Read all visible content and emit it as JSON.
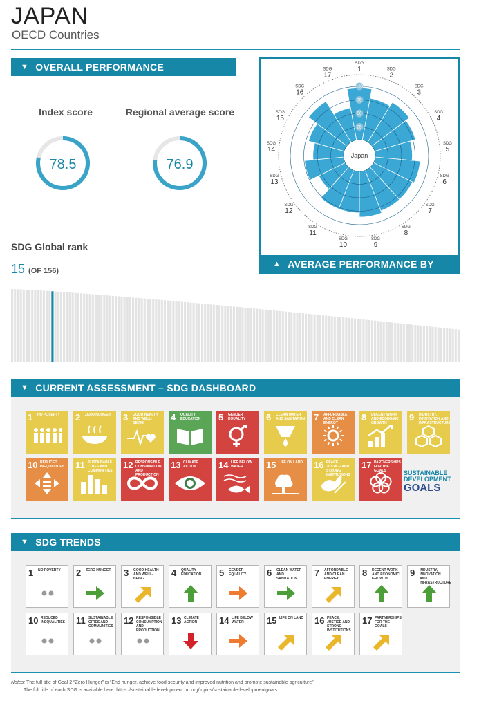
{
  "header": {
    "country": "JAPAN",
    "group": "OECD Countries"
  },
  "overall": {
    "banner": "OVERALL PERFORMANCE",
    "index_label": "Index score",
    "index_value": 78.5,
    "index_text": "78.5",
    "regional_label": "Regional average score",
    "regional_value": 76.9,
    "regional_text": "76.9"
  },
  "rank": {
    "title": "SDG Global rank",
    "value": "15",
    "of": "(OF 156)",
    "position": 15,
    "total": 156
  },
  "radar": {
    "banner": "AVERAGE PERFORMANCE BY SDG",
    "center_label": "Japan",
    "sdg_word": "SDG",
    "ring_labels": [
      "25",
      "50",
      "75",
      "100"
    ]
  },
  "dashboard": {
    "banner": "CURRENT ASSESSMENT – SDG DASHBOARD",
    "logo_line1": "SUSTAINABLE",
    "logo_line2": "DEVELOPMENT",
    "logo_line3": "GOALS"
  },
  "trends": {
    "banner": "SDG TRENDS"
  },
  "goals": [
    {
      "n": "1",
      "name": "NO POVERTY",
      "color": "#e5243b",
      "icon": "people-icon",
      "trend": "dots",
      "trend_color": "#999999"
    },
    {
      "n": "2",
      "name": "ZERO HUNGER",
      "color": "#dda63a",
      "icon": "bowl-icon",
      "trend": "right",
      "trend_color": "#4c9f38"
    },
    {
      "n": "3",
      "name": "GOOD HEALTH AND WELL-BEING",
      "color": "#4c9f38",
      "icon": "heartbeat-icon",
      "trend": "diag",
      "trend_color": "#e9b62c"
    },
    {
      "n": "4",
      "name": "QUALITY EDUCATION",
      "color": "#c5192d",
      "icon": "book-icon",
      "trend": "up",
      "trend_color": "#4c9f38"
    },
    {
      "n": "5",
      "name": "GENDER EQUALITY",
      "color": "#ff3a21",
      "icon": "gender-icon",
      "trend": "right",
      "trend_color": "#ef7b31"
    },
    {
      "n": "6",
      "name": "CLEAN WATER AND SANITATION",
      "color": "#26bde2",
      "icon": "water-icon",
      "trend": "right",
      "trend_color": "#4c9f38"
    },
    {
      "n": "7",
      "name": "AFFORDABLE AND CLEAN ENERGY",
      "color": "#fcc30b",
      "icon": "sun-icon",
      "trend": "diag",
      "trend_color": "#e9b62c"
    },
    {
      "n": "8",
      "name": "DECENT WORK AND ECONOMIC GROWTH",
      "color": "#a21942",
      "icon": "growth-icon",
      "trend": "up",
      "trend_color": "#4c9f38"
    },
    {
      "n": "9",
      "name": "INDUSTRY, INNOVATION AND INFRASTRUCTURE",
      "color": "#fd6925",
      "icon": "cubes-icon",
      "trend": "up",
      "trend_color": "#4c9f38"
    },
    {
      "n": "10",
      "name": "REDUCED INEQUALITIES",
      "color": "#dd1367",
      "icon": "arrows-icon",
      "trend": "dots",
      "trend_color": "#999999"
    },
    {
      "n": "11",
      "name": "SUSTAINABLE CITIES AND COMMUNITIES",
      "color": "#fd9d24",
      "icon": "buildings-icon",
      "trend": "dots",
      "trend_color": "#999999"
    },
    {
      "n": "12",
      "name": "RESPONSIBLE CONSUMPTION AND PRODUCTION",
      "color": "#bf8b2e",
      "icon": "infinity-icon",
      "trend": "dots",
      "trend_color": "#999999"
    },
    {
      "n": "13",
      "name": "CLIMATE ACTION",
      "color": "#3f7e44",
      "icon": "eye-globe-icon",
      "trend": "down",
      "trend_color": "#d3232a"
    },
    {
      "n": "14",
      "name": "LIFE BELOW WATER",
      "color": "#0a97d9",
      "icon": "fish-icon",
      "trend": "right",
      "trend_color": "#ef7b31"
    },
    {
      "n": "15",
      "name": "LIFE ON LAND",
      "color": "#56c02b",
      "icon": "tree-icon",
      "trend": "diag",
      "trend_color": "#e9b62c"
    },
    {
      "n": "16",
      "name": "PEACE, JUSTICE AND STRONG INSTITUTIONS",
      "color": "#00689d",
      "icon": "dove-icon",
      "trend": "diag",
      "trend_color": "#e9b62c"
    },
    {
      "n": "17",
      "name": "PARTNERSHIPS FOR THE GOALS",
      "color": "#19486a",
      "icon": "rings-icon",
      "trend": "diag",
      "trend_color": "#e9b62c"
    }
  ],
  "dashboard_status": [
    "#e7cb4c",
    "#e7cb4c",
    "#e7cb4c",
    "#5aa556",
    "#d3433f",
    "#e7cb4c",
    "#e68e45",
    "#e7cb4c",
    "#e7cb4c",
    "#e68e45",
    "#e7cb4c",
    "#d3433f",
    "#d3433f",
    "#d3433f",
    "#e68e45",
    "#e7cb4c",
    "#d3433f"
  ],
  "notes": {
    "label": "Notes:",
    "line1": " The full title of Goal 2 “Zero Hunger” is “End hunger, achieve food security and improved nutrition and promote sustainable agriculture”.",
    "line2": "The full title of each SDG is available here: https://sustainabledevelopment.un.org/topics/sustainabledevelopmentgoals"
  },
  "chart_data": [
    {
      "type": "bar",
      "name": "radar",
      "categories": [
        "1",
        "2",
        "3",
        "4",
        "5",
        "6",
        "7",
        "8",
        "9",
        "10",
        "11",
        "12",
        "13",
        "14",
        "15",
        "16",
        "17"
      ],
      "values": [
        97,
        80,
        88,
        80,
        70,
        85,
        82,
        82,
        86,
        78,
        78,
        56,
        74,
        58,
        70,
        90,
        62
      ],
      "ylim": [
        0,
        100
      ],
      "ticks": [
        25,
        50,
        75,
        100
      ]
    },
    {
      "type": "bar",
      "name": "global-rank",
      "highlight_index": 15,
      "count": 156,
      "value_range": [
        85.9,
        38.3
      ]
    }
  ]
}
